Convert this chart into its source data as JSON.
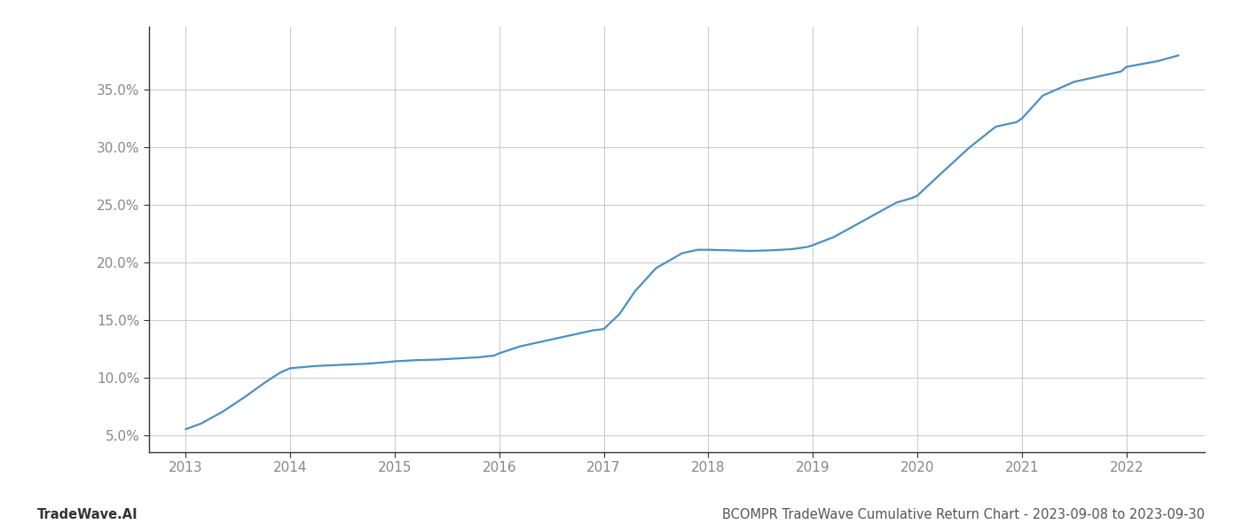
{
  "title": "BCOMPR TradeWave Cumulative Return Chart - 2023-09-08 to 2023-09-30",
  "watermark": "TradeWave.AI",
  "line_color": "#4a90c4",
  "background_color": "#ffffff",
  "grid_color": "#cccccc",
  "x_values": [
    2013.0,
    2013.15,
    2013.35,
    2013.55,
    2013.75,
    2013.9,
    2014.0,
    2014.25,
    2014.5,
    2014.75,
    2014.95,
    2015.0,
    2015.2,
    2015.4,
    2015.6,
    2015.8,
    2015.95,
    2016.0,
    2016.2,
    2016.5,
    2016.75,
    2016.9,
    2017.0,
    2017.15,
    2017.3,
    2017.5,
    2017.75,
    2017.9,
    2018.0,
    2018.2,
    2018.4,
    2018.6,
    2018.8,
    2018.95,
    2019.0,
    2019.2,
    2019.4,
    2019.6,
    2019.8,
    2019.95,
    2020.0,
    2020.2,
    2020.5,
    2020.75,
    2020.95,
    2021.0,
    2021.2,
    2021.5,
    2021.75,
    2021.95,
    2022.0,
    2022.3,
    2022.5
  ],
  "y_values": [
    5.5,
    6.0,
    7.0,
    8.2,
    9.5,
    10.4,
    10.8,
    11.0,
    11.1,
    11.2,
    11.35,
    11.4,
    11.5,
    11.55,
    11.65,
    11.75,
    11.9,
    12.1,
    12.7,
    13.3,
    13.8,
    14.1,
    14.2,
    15.5,
    17.5,
    19.5,
    20.8,
    21.1,
    21.1,
    21.05,
    21.0,
    21.05,
    21.15,
    21.35,
    21.5,
    22.2,
    23.2,
    24.2,
    25.2,
    25.6,
    25.8,
    27.5,
    30.0,
    31.8,
    32.2,
    32.5,
    34.5,
    35.7,
    36.2,
    36.6,
    37.0,
    37.5,
    38.0
  ],
  "ylim": [
    3.5,
    40.5
  ],
  "xlim": [
    2012.65,
    2022.75
  ],
  "yticks": [
    5.0,
    10.0,
    15.0,
    20.0,
    25.0,
    30.0,
    35.0
  ],
  "xticks": [
    2013,
    2014,
    2015,
    2016,
    2017,
    2018,
    2019,
    2020,
    2021,
    2022
  ],
  "title_fontsize": 10.5,
  "watermark_fontsize": 10.5,
  "tick_fontsize": 11,
  "line_width": 1.6
}
